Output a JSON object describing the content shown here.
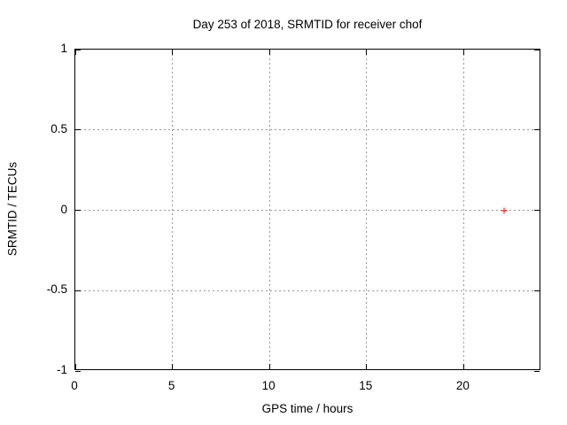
{
  "chart_data": {
    "type": "scatter",
    "title": "Day 253 of 2018, SRMTID for receiver chof",
    "xlabel": "GPS time / hours",
    "ylabel": "SRMTID / TECUs",
    "xlim": [
      0,
      24
    ],
    "ylim": [
      -1,
      1
    ],
    "xticks": [
      0,
      5,
      10,
      15,
      20
    ],
    "yticks": [
      1,
      0.5,
      0,
      -0.5,
      -1
    ],
    "grid": true,
    "legend": false,
    "series": [
      {
        "marker": "plus",
        "color": "#ff0000",
        "points": [
          {
            "x": 22.1,
            "y": 0.0
          }
        ]
      }
    ],
    "colors": {
      "background": "#ffffff",
      "border": "#000000",
      "grid": "#989898",
      "text": "#000000"
    }
  }
}
